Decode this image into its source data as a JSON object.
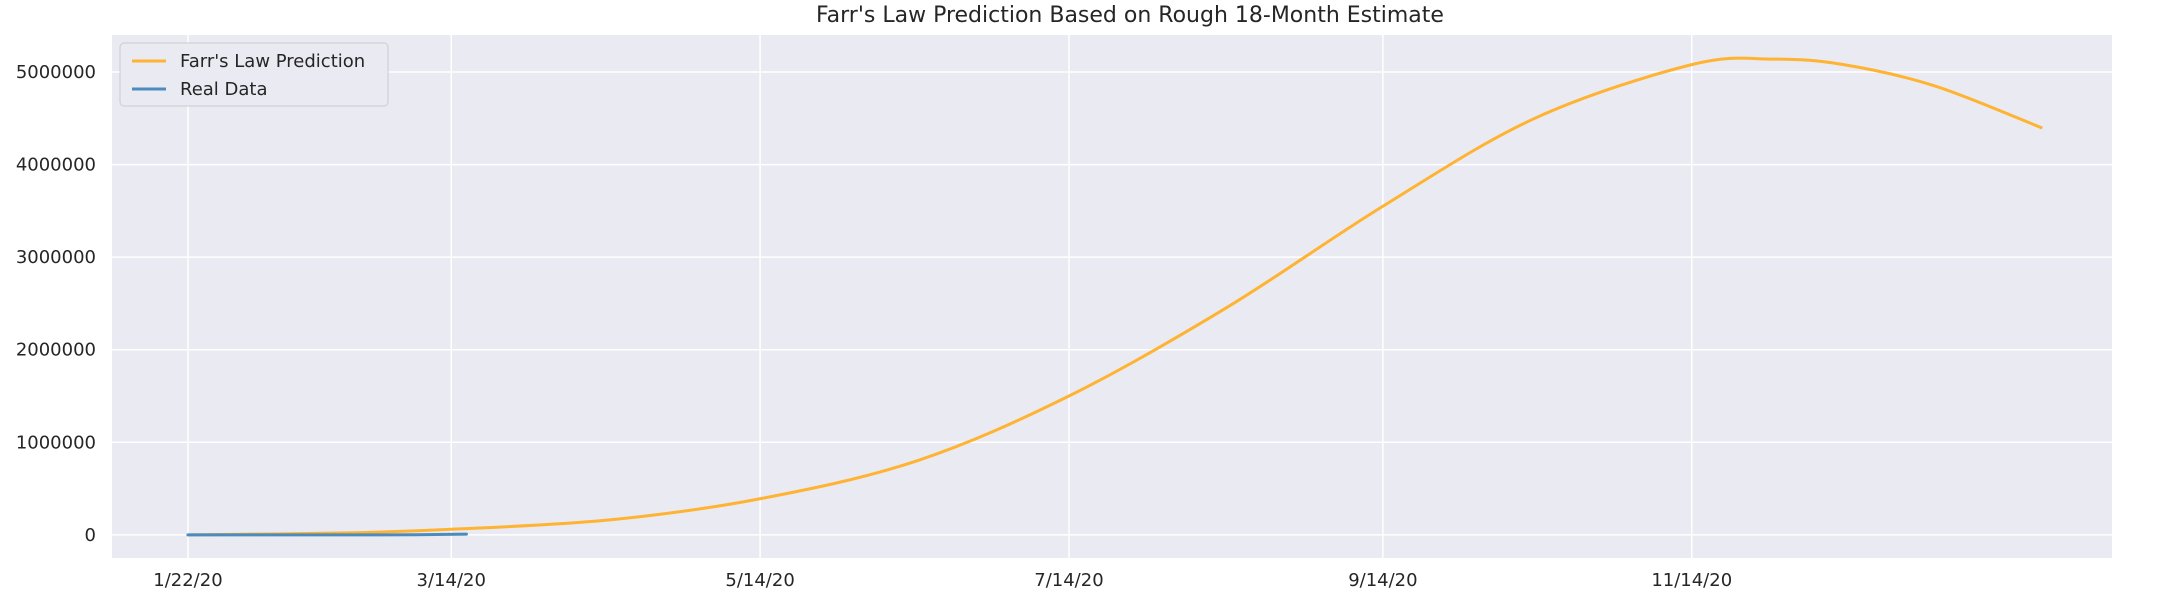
{
  "chart_data": {
    "type": "line",
    "title": "Farr's Law Prediction Based on Rough 18-Month Estimate",
    "xlabel": "",
    "ylabel": "",
    "x_ticks": [
      "1/22/20",
      "3/14/20",
      "5/14/20",
      "7/14/20",
      "9/14/20",
      "11/14/20"
    ],
    "y_ticks": [
      "0",
      "1000000",
      "2000000",
      "3000000",
      "4000000",
      "5000000"
    ],
    "ylim": [
      -250000,
      5400000
    ],
    "xlim": [
      "1/7/20",
      "2/5/21"
    ],
    "grid": true,
    "legend_position": "top-left",
    "background_color": "#eaeaf2",
    "series": [
      {
        "name": "Farr's Law Prediction",
        "color": "#ffb332",
        "x": [
          "1/22/20",
          "2/21/20",
          "3/14/20",
          "4/14/20",
          "5/14/20",
          "6/14/20",
          "7/14/20",
          "8/14/20",
          "9/14/20",
          "10/14/20",
          "11/14/20",
          "11/30/20",
          "12/14/20",
          "1/1/21",
          "1/22/21"
        ],
        "y": [
          0,
          20000,
          60000,
          160000,
          390000,
          800000,
          1500000,
          2450000,
          3550000,
          4500000,
          5080000,
          5140000,
          5080000,
          4850000,
          4400000
        ]
      },
      {
        "name": "Real Data",
        "color": "#4c8cbc",
        "x": [
          "1/22/20",
          "2/7/20",
          "2/21/20",
          "3/7/20",
          "3/17/20"
        ],
        "y": [
          0,
          0,
          0,
          1000,
          8000
        ]
      }
    ]
  }
}
